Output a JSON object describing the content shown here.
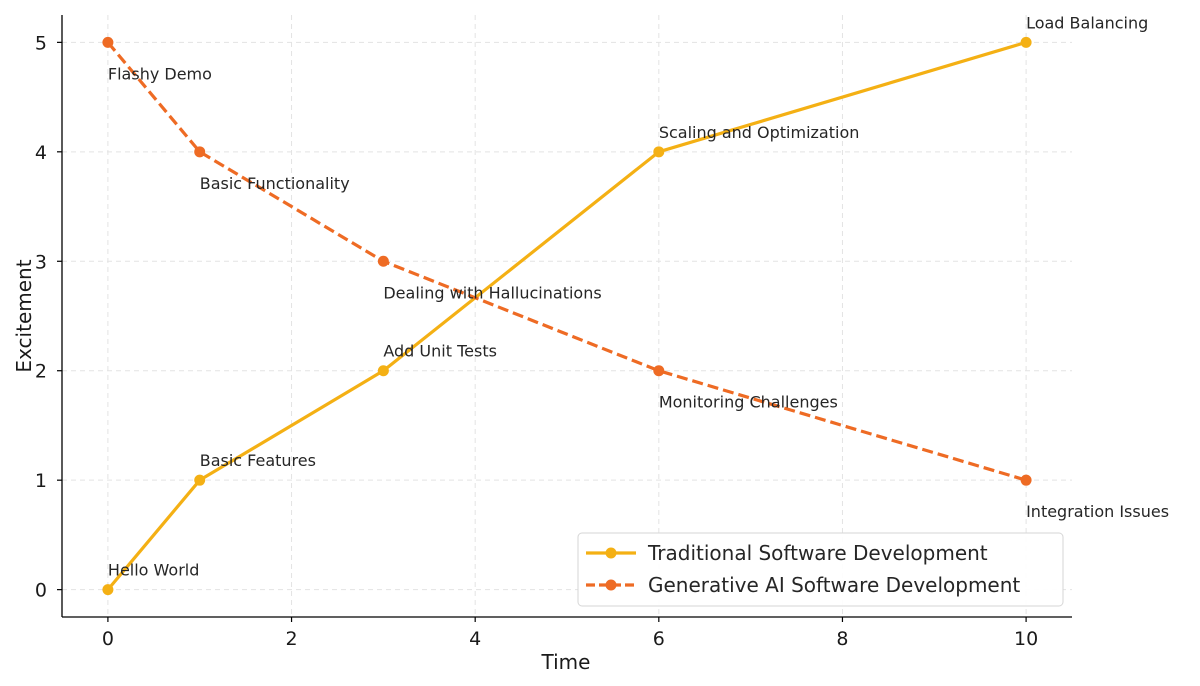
{
  "chart_data": {
    "type": "line",
    "title": "",
    "xlabel": "Time",
    "ylabel": "Excitement",
    "xlim": [
      -0.5,
      10.5
    ],
    "ylim": [
      -0.25,
      5.25
    ],
    "x_ticks": [
      "0",
      "2",
      "4",
      "6",
      "8",
      "10"
    ],
    "y_ticks": [
      "0",
      "1",
      "2",
      "3",
      "4",
      "5"
    ],
    "grid": true,
    "legend_position": "lower-right",
    "series": [
      {
        "name": "Traditional Software Development",
        "color": "#F4B014",
        "style": "solid",
        "points": [
          {
            "x": 0,
            "y": 0,
            "label": "Hello World"
          },
          {
            "x": 1,
            "y": 1,
            "label": "Basic Features"
          },
          {
            "x": 3,
            "y": 2,
            "label": "Add Unit Tests"
          },
          {
            "x": 6,
            "y": 4,
            "label": "Scaling and Optimization"
          },
          {
            "x": 10,
            "y": 5,
            "label": "Load Balancing"
          }
        ]
      },
      {
        "name": "Generative AI Software Development",
        "color": "#EE6B24",
        "style": "dashed",
        "points": [
          {
            "x": 0,
            "y": 5,
            "label": "Flashy Demo"
          },
          {
            "x": 1,
            "y": 4,
            "label": "Basic Functionality"
          },
          {
            "x": 3,
            "y": 3,
            "label": "Dealing with Hallucinations"
          },
          {
            "x": 6,
            "y": 2,
            "label": "Monitoring Challenges"
          },
          {
            "x": 10,
            "y": 1,
            "label": "Integration Issues"
          }
        ]
      }
    ]
  }
}
